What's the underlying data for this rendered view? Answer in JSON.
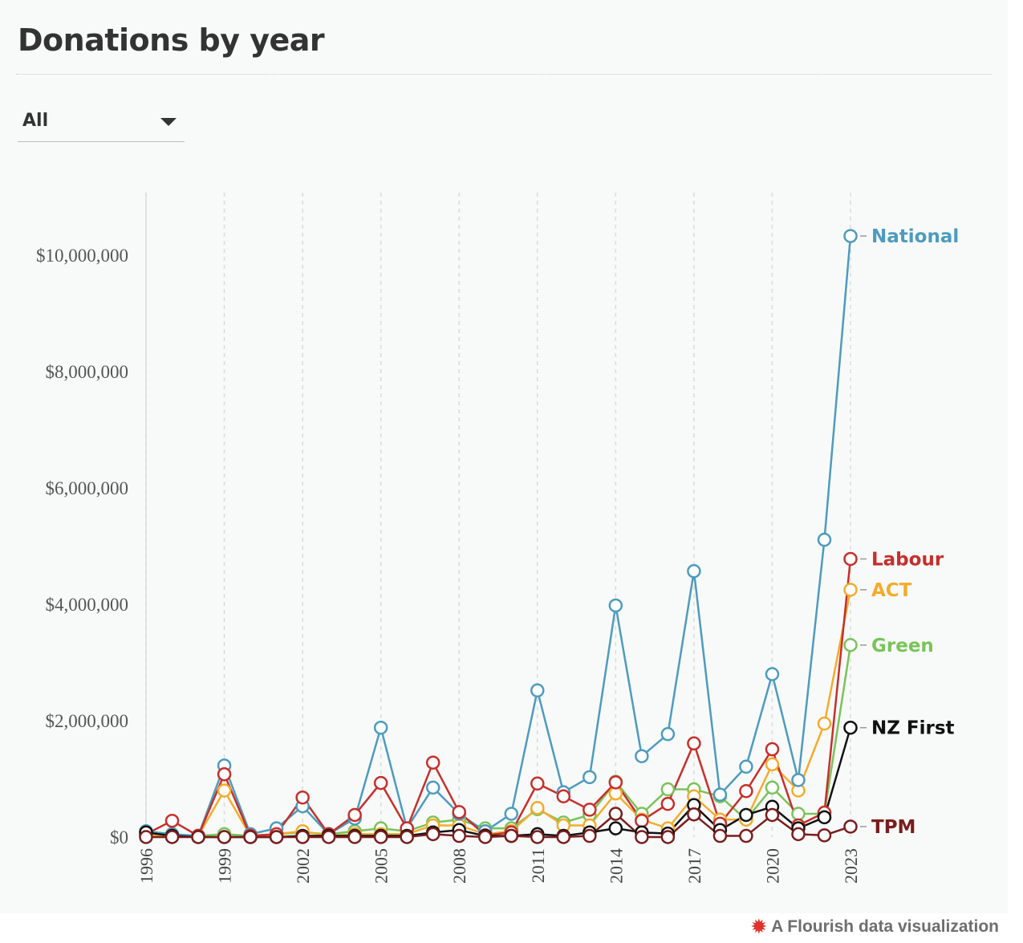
{
  "header": {
    "title": "Donations by year"
  },
  "filter": {
    "value": "All"
  },
  "footer": {
    "text": "A Flourish data visualization"
  },
  "chart_data": {
    "type": "line",
    "title": "Donations by year",
    "xlabel": "",
    "ylabel": "",
    "x": [
      1996,
      1997,
      1998,
      1999,
      2000,
      2001,
      2002,
      2003,
      2004,
      2005,
      2006,
      2007,
      2008,
      2009,
      2010,
      2011,
      2012,
      2013,
      2014,
      2015,
      2016,
      2017,
      2018,
      2019,
      2020,
      2021,
      2022,
      2023
    ],
    "x_ticks": [
      "1996",
      "1999",
      "2002",
      "2005",
      "2008",
      "2011",
      "2014",
      "2017",
      "2020",
      "2023"
    ],
    "y_ticks": [
      0,
      2000000,
      4000000,
      6000000,
      8000000,
      10000000
    ],
    "y_tick_labels": [
      "$0",
      "$2,000,000",
      "$4,000,000",
      "$6,000,000",
      "$8,000,000",
      "$10,000,000"
    ],
    "ylim": [
      0,
      11000000
    ],
    "grid": "vertical dashed at x ticks",
    "legend": "end-of-line labels",
    "series": [
      {
        "name": "Green",
        "color": "#7ac35a",
        "values": [
          20000,
          20000,
          20000,
          50000,
          20000,
          50000,
          80000,
          50000,
          100000,
          150000,
          100000,
          250000,
          300000,
          150000,
          150000,
          480000,
          250000,
          380000,
          950000,
          400000,
          820000,
          820000,
          700000,
          300000,
          850000,
          400000,
          400000,
          3300000
        ]
      },
      {
        "name": "ACT",
        "color": "#f5ab2c",
        "values": [
          20000,
          20000,
          20000,
          800000,
          20000,
          50000,
          100000,
          20000,
          50000,
          50000,
          50000,
          200000,
          200000,
          50000,
          100000,
          500000,
          200000,
          200000,
          750000,
          300000,
          150000,
          700000,
          300000,
          300000,
          1250000,
          800000,
          1950000,
          4250000
        ]
      },
      {
        "name": "National",
        "color": "#4d9bbf",
        "values": [
          100000,
          50000,
          20000,
          1230000,
          50000,
          150000,
          530000,
          50000,
          320000,
          1880000,
          150000,
          850000,
          400000,
          100000,
          400000,
          2520000,
          770000,
          1030000,
          3980000,
          1390000,
          1770000,
          4570000,
          730000,
          1210000,
          2800000,
          980000,
          5110000,
          10330000
        ]
      },
      {
        "name": "Labour",
        "color": "#c62f2c",
        "values": [
          50000,
          280000,
          20000,
          1080000,
          20000,
          50000,
          680000,
          50000,
          380000,
          930000,
          150000,
          1280000,
          430000,
          30000,
          80000,
          920000,
          700000,
          470000,
          940000,
          280000,
          570000,
          1610000,
          230000,
          790000,
          1510000,
          200000,
          420000,
          4780000
        ]
      },
      {
        "name": "NZ First",
        "color": "#111111",
        "values": [
          80000,
          20000,
          0,
          0,
          0,
          0,
          20000,
          20000,
          20000,
          20000,
          20000,
          80000,
          120000,
          20000,
          20000,
          50000,
          20000,
          80000,
          150000,
          80000,
          60000,
          550000,
          120000,
          380000,
          520000,
          150000,
          340000,
          1880000
        ]
      },
      {
        "name": "TPM",
        "color": "#7a1d1d",
        "values": [
          0,
          0,
          0,
          0,
          0,
          0,
          0,
          0,
          0,
          0,
          0,
          50000,
          20000,
          0,
          20000,
          0,
          0,
          20000,
          400000,
          0,
          0,
          390000,
          20000,
          20000,
          380000,
          50000,
          30000,
          180000
        ]
      }
    ]
  }
}
